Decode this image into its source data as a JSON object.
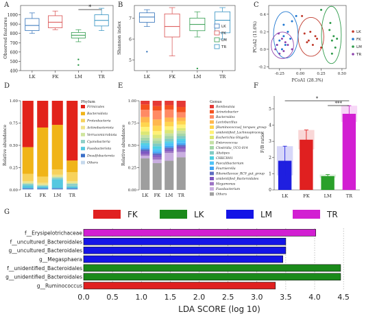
{
  "chart_data": [
    {
      "panel": "A",
      "type": "box",
      "ylabel": "Observed features",
      "categories": [
        "LK",
        "FK",
        "LM",
        "TR"
      ],
      "colors": [
        "#2e6fb8",
        "#d94c4c",
        "#2e9a4a",
        "#2e8fc0"
      ],
      "ylim": [
        400,
        1100
      ],
      "yticks": [
        400,
        500,
        600,
        700,
        800,
        900,
        1000
      ],
      "boxes": [
        {
          "min": 800,
          "q1": 830,
          "median": 885,
          "q3": 960,
          "max": 1020,
          "outliers": []
        },
        {
          "min": 840,
          "q1": 860,
          "median": 920,
          "q3": 990,
          "max": 1040,
          "outliers": []
        },
        {
          "min": 710,
          "q1": 750,
          "median": 780,
          "q3": 810,
          "max": 840,
          "outliers": [
            520,
            460
          ]
        },
        {
          "min": 830,
          "q1": 880,
          "median": 940,
          "q3": 1000,
          "max": 1070,
          "outliers": []
        }
      ],
      "significance": [
        {
          "from": "LM",
          "to": "TR",
          "label": "*"
        }
      ]
    },
    {
      "panel": "B",
      "type": "box",
      "ylabel": "Shannon index",
      "categories": [
        "LK",
        "FK",
        "LM",
        "TR"
      ],
      "colors": [
        "#2e6fb8",
        "#d94c4c",
        "#2e9a4a",
        "#2e8fc0"
      ],
      "ylim": [
        4.5,
        7.6
      ],
      "yticks": [
        5,
        6,
        7
      ],
      "boxes": [
        {
          "min": 6.6,
          "q1": 6.8,
          "median": 7.05,
          "q3": 7.25,
          "max": 7.4,
          "outliers": [
            5.4
          ]
        },
        {
          "min": 5.2,
          "q1": 6.1,
          "median": 6.6,
          "q3": 7.2,
          "max": 7.5,
          "outliers": []
        },
        {
          "min": 6.1,
          "q1": 6.4,
          "median": 6.7,
          "q3": 7.0,
          "max": 7.3,
          "outliers": [
            4.6
          ]
        },
        {
          "min": 6.0,
          "q1": 6.3,
          "median": 6.9,
          "q3": 7.3,
          "max": 7.5,
          "outliers": []
        }
      ],
      "legend": [
        "LK",
        "FK",
        "LM",
        "TR"
      ]
    },
    {
      "panel": "C",
      "type": "scatter",
      "xlabel": "PCoA1 (28.3%)",
      "ylabel": "PCoA2 (11.6%)",
      "xlim": [
        -0.38,
        0.55
      ],
      "ylim": [
        -0.22,
        0.5
      ],
      "xticks": [
        -0.25,
        0.0,
        0.25,
        0.5
      ],
      "xticklabels": [
        "-0.25",
        "0.00",
        "0.25",
        "0.50"
      ],
      "yticks": [
        -0.2,
        0.0,
        0.2,
        0.4
      ],
      "yticklabels": [
        "-0.2",
        "0.0",
        "0.2",
        "0.4"
      ],
      "legend": [
        "LK",
        "FK",
        "LM",
        "TR"
      ],
      "series": [
        {
          "name": "LK",
          "color": "#c0392b",
          "points": [
            [
              0.05,
              0.18
            ],
            [
              0.1,
              0.1
            ],
            [
              0.15,
              0.05
            ],
            [
              0.2,
              0.12
            ],
            [
              0.12,
              0.2
            ],
            [
              0.25,
              0.02
            ],
            [
              0.18,
              0.15
            ],
            [
              0.08,
              0.08
            ],
            [
              0.02,
              0.38
            ]
          ]
        },
        {
          "name": "FK",
          "color": "#1f77d0",
          "points": [
            [
              -0.25,
              0.1
            ],
            [
              -0.2,
              0.15
            ],
            [
              -0.18,
              0.05
            ],
            [
              -0.15,
              0.2
            ],
            [
              -0.22,
              0.0
            ],
            [
              -0.1,
              0.32
            ],
            [
              -0.12,
              0.12
            ],
            [
              -0.28,
              0.05
            ],
            [
              -0.05,
              0.38
            ],
            [
              -0.2,
              0.28
            ]
          ]
        },
        {
          "name": "LM",
          "color": "#2e9a4a",
          "points": [
            [
              0.35,
              0.22
            ],
            [
              0.38,
              0.1
            ],
            [
              0.4,
              0.15
            ],
            [
              0.42,
              0.02
            ],
            [
              0.36,
              0.3
            ],
            [
              0.44,
              0.12
            ],
            [
              0.38,
              -0.05
            ],
            [
              0.25,
              0.45
            ]
          ]
        },
        {
          "name": "TR",
          "color": "#8e44ad",
          "points": [
            [
              -0.28,
              0.05
            ],
            [
              -0.22,
              0.12
            ],
            [
              -0.25,
              -0.05
            ],
            [
              -0.18,
              0.08
            ],
            [
              -0.3,
              0.0
            ],
            [
              -0.26,
              0.18
            ],
            [
              -0.2,
              -0.02
            ],
            [
              -0.15,
              0.05
            ],
            [
              -0.1,
              0.0
            ]
          ]
        }
      ]
    },
    {
      "panel": "D",
      "type": "stacked_bar",
      "ylabel": "Relative abundance",
      "categories": [
        "LK",
        "FK",
        "LM",
        "TR"
      ],
      "ylim": [
        0,
        1
      ],
      "yticks": [
        0.0,
        0.25,
        0.5,
        0.75,
        1.0
      ],
      "yticklabels": [
        "0.00",
        "0.25",
        "0.50",
        "0.75",
        "1.00"
      ],
      "legend_title": "Phylum",
      "series": [
        {
          "name": "Others",
          "color": "#c6d9ec",
          "values": [
            0.01,
            0.01,
            0.01,
            0.01
          ]
        },
        {
          "name": "Desulfobacterota",
          "color": "#3a6fc8",
          "values": [
            0.01,
            0.01,
            0.01,
            0.01
          ]
        },
        {
          "name": "Fusobacteriota",
          "color": "#55c8e0",
          "values": [
            0.03,
            0.02,
            0.1,
            0.02
          ]
        },
        {
          "name": "Cyanobacteria",
          "color": "#8fd0c8",
          "values": [
            0.02,
            0.01,
            0.02,
            0.03
          ]
        },
        {
          "name": "Verrucomicrobiota",
          "color": "#cfe59e",
          "values": [
            0.01,
            0.01,
            0.01,
            0.01
          ]
        },
        {
          "name": "Actinobacteriota",
          "color": "#f0e28a",
          "values": [
            0.02,
            0.02,
            0.02,
            0.02
          ]
        },
        {
          "name": "Proteobacteria",
          "color": "#f7d25c",
          "values": [
            0.08,
            0.07,
            0.06,
            0.1
          ]
        },
        {
          "name": "Bacteroidota",
          "color": "#f0b418",
          "values": [
            0.3,
            0.55,
            0.5,
            0.13
          ]
        },
        {
          "name": "Firmicutes",
          "color": "#e2231a",
          "values": [
            0.52,
            0.3,
            0.27,
            0.67
          ]
        }
      ]
    },
    {
      "panel": "E",
      "type": "stacked_bar",
      "ylabel": "Relative abundance",
      "categories": [
        "LK",
        "FK",
        "LM",
        "TR"
      ],
      "ylim": [
        0,
        1
      ],
      "yticks": [
        0.0,
        0.25,
        0.5,
        0.75,
        1.0
      ],
      "yticklabels": [
        "0.00",
        "0.25",
        "0.50",
        "0.75",
        "1.00"
      ],
      "legend_title": "Genus",
      "series": [
        {
          "name": "Others",
          "color": "#9e9e9e",
          "values": [
            0.35,
            0.3,
            0.33,
            0.37
          ]
        },
        {
          "name": "Fusobacterium",
          "color": "#c9aee0",
          "values": [
            0.03,
            0.04,
            0.09,
            0.06
          ]
        },
        {
          "name": "Megamonas",
          "color": "#9c72c4",
          "values": [
            0.02,
            0.03,
            0.02,
            0.04
          ]
        },
        {
          "name": "unidentified_Bacteroidales",
          "color": "#7e57c2",
          "values": [
            0.03,
            0.02,
            0.02,
            0.02
          ]
        },
        {
          "name": "Rikenellaceae_RC9_gut_group",
          "color": "#5c6bc0",
          "values": [
            0.02,
            0.02,
            0.02,
            0.02
          ]
        },
        {
          "name": "Fournierella",
          "color": "#42a5f5",
          "values": [
            0.02,
            0.02,
            0.02,
            0.02
          ]
        },
        {
          "name": "Faecalibacterium",
          "color": "#4fc3f7",
          "values": [
            0.03,
            0.03,
            0.03,
            0.03
          ]
        },
        {
          "name": "CHKCI001",
          "color": "#4dd0e1",
          "values": [
            0.02,
            0.03,
            0.02,
            0.02
          ]
        },
        {
          "name": "Alistipes",
          "color": "#80cbc4",
          "values": [
            0.03,
            0.03,
            0.03,
            0.03
          ]
        },
        {
          "name": "Clostridia_UCG-014",
          "color": "#a5d6a7",
          "values": [
            0.03,
            0.03,
            0.03,
            0.03
          ]
        },
        {
          "name": "Enterococcus",
          "color": "#c5e1a5",
          "values": [
            0.03,
            0.03,
            0.03,
            0.03
          ]
        },
        {
          "name": "Escherichia-Shigella",
          "color": "#dce775",
          "values": [
            0.04,
            0.04,
            0.04,
            0.03
          ]
        },
        {
          "name": "unidentified_Lachnospiraceae",
          "color": "#fff176",
          "values": [
            0.05,
            0.04,
            0.04,
            0.04
          ]
        },
        {
          "name": "[Ruminococcus]_torques_group",
          "color": "#ffd54f",
          "values": [
            0.05,
            0.06,
            0.05,
            0.04
          ]
        },
        {
          "name": "Lactobacillus",
          "color": "#ffb74d",
          "values": [
            0.06,
            0.07,
            0.05,
            0.04
          ]
        },
        {
          "name": "Bacteroides",
          "color": "#ff8a65",
          "values": [
            0.08,
            0.1,
            0.09,
            0.06
          ]
        },
        {
          "name": "Acinetobacter",
          "color": "#f4511e",
          "values": [
            0.06,
            0.05,
            0.05,
            0.06
          ]
        },
        {
          "name": "Romboutsia",
          "color": "#e53935",
          "values": [
            0.04,
            0.06,
            0.05,
            0.07
          ]
        }
      ]
    },
    {
      "panel": "F",
      "type": "bar",
      "ylabel": "F/B ratio",
      "categories": [
        "LK",
        "FK",
        "LM",
        "TR"
      ],
      "values": [
        1.8,
        3.1,
        0.85,
        4.7
      ],
      "errors": [
        0.9,
        0.6,
        0.1,
        0.5
      ],
      "colors": [
        "#1f1fe0",
        "#e02020",
        "#2aa02a",
        "#d21fd2"
      ],
      "ylim": [
        0,
        5.8
      ],
      "yticks": [
        0,
        1,
        2,
        3,
        4,
        5
      ],
      "significance": [
        {
          "from": "LK",
          "to": "TR",
          "label": "*"
        },
        {
          "from": "LM",
          "to": "TR",
          "label": "***"
        }
      ]
    },
    {
      "panel": "G",
      "type": "hbar",
      "xlabel": "LDA SCORE (log 10)",
      "xlim": [
        0,
        4.7
      ],
      "xticks": [
        0.0,
        0.5,
        1.0,
        1.5,
        2.0,
        2.5,
        3.0,
        3.5,
        4.0,
        4.5
      ],
      "xticklabels": [
        "0.0",
        "0.5",
        "1.0",
        "1.5",
        "2.0",
        "2.5",
        "3.0",
        "3.5",
        "4.0",
        "4.5"
      ],
      "legend": [
        {
          "name": "FK",
          "color": "#e02020"
        },
        {
          "name": "LK",
          "color": "#1a8a1a"
        },
        {
          "name": "LM",
          "color": "#1414e6"
        },
        {
          "name": "TR",
          "color": "#d21fd2"
        }
      ],
      "categories": [
        "f__Erysipelotrichaceae",
        "f__uncultured_Bacteroidales",
        "g__uncultured_Bacteroidales",
        "g__Megasphaera",
        "f__unidentified_Bacteroidales",
        "g__unidentified_Bacteroidales",
        "g__Ruminococcus"
      ],
      "values": [
        4.02,
        3.5,
        3.5,
        3.45,
        4.45,
        4.45,
        3.32
      ],
      "groups": [
        "TR",
        "LM",
        "LM",
        "LM",
        "LK",
        "LK",
        "FK"
      ]
    }
  ],
  "panels": [
    "A",
    "B",
    "C",
    "D",
    "E",
    "F",
    "G"
  ]
}
